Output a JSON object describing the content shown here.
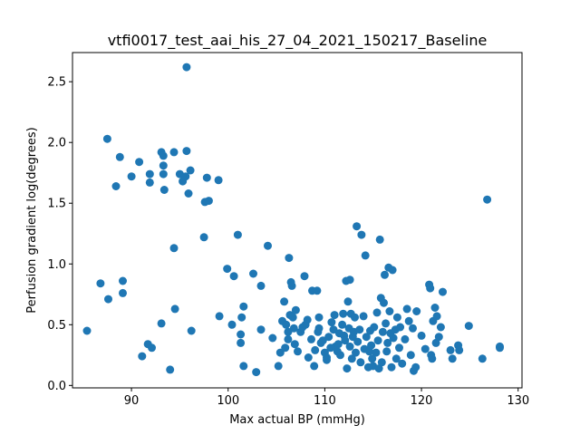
{
  "chart_data": {
    "type": "scatter",
    "title": "vtfi0017_test_aai_his_27_04_2021_150217_Baseline",
    "xlabel": "Max actual BP (mmHg)",
    "ylabel": "Perfusion gradient log(degrees)",
    "xlim": [
      83.9,
      130.4
    ],
    "ylim": [
      -0.02,
      2.74
    ],
    "xticks": [
      90,
      100,
      110,
      120,
      130
    ],
    "yticks": [
      0.0,
      0.5,
      1.0,
      1.5,
      2.0,
      2.5
    ],
    "xtick_labels": [
      "90",
      "100",
      "110",
      "120",
      "130"
    ],
    "ytick_labels": [
      "0.0",
      "0.5",
      "1.0",
      "1.5",
      "2.0",
      "2.5"
    ],
    "grid": false,
    "marker_color": "#1f77b4",
    "series": [
      {
        "points": [
          [
            85.4,
            0.45
          ],
          [
            86.8,
            0.84
          ],
          [
            87.6,
            0.71
          ],
          [
            87.5,
            2.03
          ],
          [
            88.4,
            1.64
          ],
          [
            88.8,
            1.88
          ],
          [
            89.1,
            0.86
          ],
          [
            89.1,
            0.76
          ],
          [
            90.0,
            1.72
          ],
          [
            90.8,
            1.84
          ],
          [
            91.1,
            0.24
          ],
          [
            91.7,
            0.34
          ],
          [
            91.9,
            1.74
          ],
          [
            91.9,
            1.67
          ],
          [
            92.1,
            0.31
          ],
          [
            93.1,
            1.92
          ],
          [
            93.3,
            1.89
          ],
          [
            93.3,
            1.81
          ],
          [
            93.3,
            1.74
          ],
          [
            93.4,
            1.61
          ],
          [
            93.1,
            0.51
          ],
          [
            94.0,
            0.13
          ],
          [
            94.4,
            1.92
          ],
          [
            94.4,
            1.13
          ],
          [
            94.5,
            0.63
          ],
          [
            95.0,
            1.74
          ],
          [
            95.3,
            1.68
          ],
          [
            95.6,
            1.72
          ],
          [
            95.7,
            1.93
          ],
          [
            95.7,
            2.62
          ],
          [
            95.9,
            1.58
          ],
          [
            96.1,
            1.77
          ],
          [
            96.2,
            0.45
          ],
          [
            97.5,
            1.22
          ],
          [
            97.6,
            1.51
          ],
          [
            97.8,
            1.71
          ],
          [
            98.0,
            1.52
          ],
          [
            99.0,
            1.69
          ],
          [
            99.1,
            0.57
          ],
          [
            99.9,
            0.96
          ],
          [
            100.4,
            0.5
          ],
          [
            100.6,
            0.9
          ],
          [
            101.0,
            1.24
          ],
          [
            101.3,
            0.35
          ],
          [
            101.3,
            0.42
          ],
          [
            101.4,
            0.56
          ],
          [
            101.6,
            0.65
          ],
          [
            101.6,
            0.16
          ],
          [
            102.6,
            0.92
          ],
          [
            102.9,
            0.11
          ],
          [
            103.4,
            0.46
          ],
          [
            103.4,
            0.82
          ],
          [
            104.1,
            1.15
          ],
          [
            104.6,
            0.39
          ],
          [
            105.2,
            0.16
          ],
          [
            105.4,
            0.27
          ],
          [
            105.6,
            0.53
          ],
          [
            105.8,
            0.69
          ],
          [
            105.9,
            0.31
          ],
          [
            106.0,
            0.5
          ],
          [
            106.2,
            0.38
          ],
          [
            106.2,
            0.44
          ],
          [
            106.3,
            1.05
          ],
          [
            106.4,
            0.58
          ],
          [
            106.5,
            0.85
          ],
          [
            106.6,
            0.82
          ],
          [
            106.7,
            0.56
          ],
          [
            106.8,
            0.47
          ],
          [
            106.9,
            0.34
          ],
          [
            107.0,
            0.62
          ],
          [
            107.2,
            0.28
          ],
          [
            107.5,
            0.44
          ],
          [
            107.7,
            0.48
          ],
          [
            107.9,
            0.9
          ],
          [
            108.0,
            0.5
          ],
          [
            108.2,
            0.54
          ],
          [
            108.3,
            0.23
          ],
          [
            108.6,
            0.38
          ],
          [
            108.7,
            0.78
          ],
          [
            108.9,
            0.16
          ],
          [
            109.0,
            0.29
          ],
          [
            109.2,
            0.78
          ],
          [
            109.3,
            0.44
          ],
          [
            109.4,
            0.47
          ],
          [
            109.4,
            0.56
          ],
          [
            109.6,
            0.35
          ],
          [
            109.8,
            0.37
          ],
          [
            110.0,
            0.27
          ],
          [
            110.2,
            0.23
          ],
          [
            110.2,
            0.21
          ],
          [
            110.4,
            0.4
          ],
          [
            110.6,
            0.31
          ],
          [
            110.7,
            0.52
          ],
          [
            110.9,
            0.46
          ],
          [
            111.0,
            0.58
          ],
          [
            111.1,
            0.32
          ],
          [
            111.3,
            0.28
          ],
          [
            111.4,
            0.34
          ],
          [
            111.5,
            0.43
          ],
          [
            111.6,
            0.25
          ],
          [
            111.8,
            0.5
          ],
          [
            111.9,
            0.59
          ],
          [
            112.0,
            0.41
          ],
          [
            112.1,
            0.37
          ],
          [
            112.2,
            0.86
          ],
          [
            112.3,
            0.14
          ],
          [
            112.4,
            0.69
          ],
          [
            112.5,
            0.47
          ],
          [
            112.6,
            0.32
          ],
          [
            112.6,
            0.87
          ],
          [
            112.7,
            0.59
          ],
          [
            112.8,
            0.22
          ],
          [
            112.9,
            0.4
          ],
          [
            113.0,
            0.44
          ],
          [
            113.1,
            0.56
          ],
          [
            113.2,
            0.27
          ],
          [
            113.3,
            1.31
          ],
          [
            113.4,
            0.36
          ],
          [
            113.6,
            0.46
          ],
          [
            113.7,
            0.19
          ],
          [
            113.8,
            1.24
          ],
          [
            114.0,
            0.57
          ],
          [
            114.1,
            0.3
          ],
          [
            114.2,
            1.07
          ],
          [
            114.3,
            0.4
          ],
          [
            114.5,
            0.15
          ],
          [
            114.6,
            0.28
          ],
          [
            114.7,
            0.45
          ],
          [
            114.8,
            0.33
          ],
          [
            114.9,
            0.22
          ],
          [
            115.0,
            0.16
          ],
          [
            115.1,
            0.48
          ],
          [
            115.3,
            0.27
          ],
          [
            115.4,
            0.6
          ],
          [
            115.5,
            0.37
          ],
          [
            115.6,
            0.14
          ],
          [
            115.7,
            1.2
          ],
          [
            115.8,
            0.72
          ],
          [
            115.9,
            0.19
          ],
          [
            116.0,
            0.44
          ],
          [
            116.1,
            0.68
          ],
          [
            116.2,
            0.91
          ],
          [
            116.3,
            0.51
          ],
          [
            116.4,
            0.28
          ],
          [
            116.5,
            0.35
          ],
          [
            116.6,
            0.97
          ],
          [
            116.7,
            0.61
          ],
          [
            116.8,
            0.43
          ],
          [
            116.9,
            0.15
          ],
          [
            117.0,
            0.95
          ],
          [
            117.1,
            0.39
          ],
          [
            117.3,
            0.46
          ],
          [
            117.4,
            0.22
          ],
          [
            117.5,
            0.56
          ],
          [
            117.7,
            0.31
          ],
          [
            117.8,
            0.48
          ],
          [
            118.0,
            0.18
          ],
          [
            118.3,
            0.38
          ],
          [
            118.5,
            0.63
          ],
          [
            118.7,
            0.53
          ],
          [
            118.9,
            0.25
          ],
          [
            119.1,
            0.47
          ],
          [
            119.2,
            0.12
          ],
          [
            119.4,
            0.15
          ],
          [
            119.5,
            0.61
          ],
          [
            120.0,
            0.41
          ],
          [
            120.4,
            0.3
          ],
          [
            120.8,
            0.83
          ],
          [
            120.9,
            0.8
          ],
          [
            121.0,
            0.25
          ],
          [
            121.1,
            0.22
          ],
          [
            121.2,
            0.53
          ],
          [
            121.4,
            0.64
          ],
          [
            121.5,
            0.35
          ],
          [
            121.6,
            0.57
          ],
          [
            121.8,
            0.4
          ],
          [
            122.0,
            0.48
          ],
          [
            122.2,
            0.77
          ],
          [
            123.0,
            0.29
          ],
          [
            123.2,
            0.22
          ],
          [
            123.8,
            0.33
          ],
          [
            123.9,
            0.29
          ],
          [
            124.9,
            0.49
          ],
          [
            126.3,
            0.22
          ],
          [
            126.8,
            1.53
          ],
          [
            128.1,
            0.31
          ],
          [
            128.1,
            0.32
          ]
        ]
      }
    ]
  }
}
